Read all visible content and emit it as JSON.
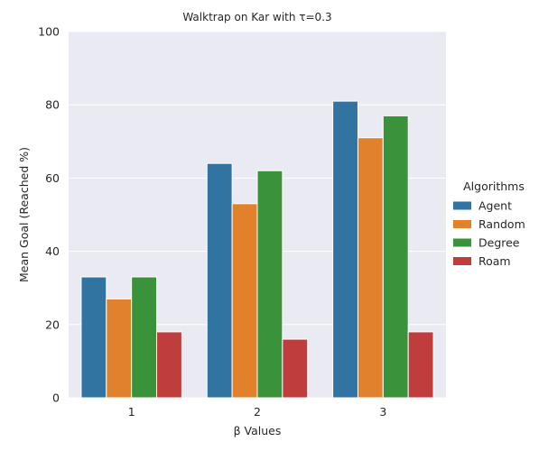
{
  "chart_data": {
    "type": "bar",
    "title": "Walktrap on Kar with τ=0.3",
    "xlabel": "β Values",
    "ylabel": "Mean Goal (Reached %)",
    "categories": [
      "1",
      "2",
      "3"
    ],
    "ylim": [
      0,
      100
    ],
    "yticks": [
      "0",
      "20",
      "40",
      "60",
      "80",
      "100"
    ],
    "grid": true,
    "legend": {
      "title": "Algorithms",
      "placement": "right"
    },
    "series": [
      {
        "name": "Agent",
        "color": "#3274a1",
        "values": [
          33,
          64,
          81
        ]
      },
      {
        "name": "Random",
        "color": "#e1812c",
        "values": [
          27,
          53,
          71
        ]
      },
      {
        "name": "Degree",
        "color": "#3a923a",
        "values": [
          33,
          62,
          77
        ]
      },
      {
        "name": "Roam",
        "color": "#c03d3e",
        "values": [
          18,
          16,
          18
        ]
      }
    ]
  }
}
